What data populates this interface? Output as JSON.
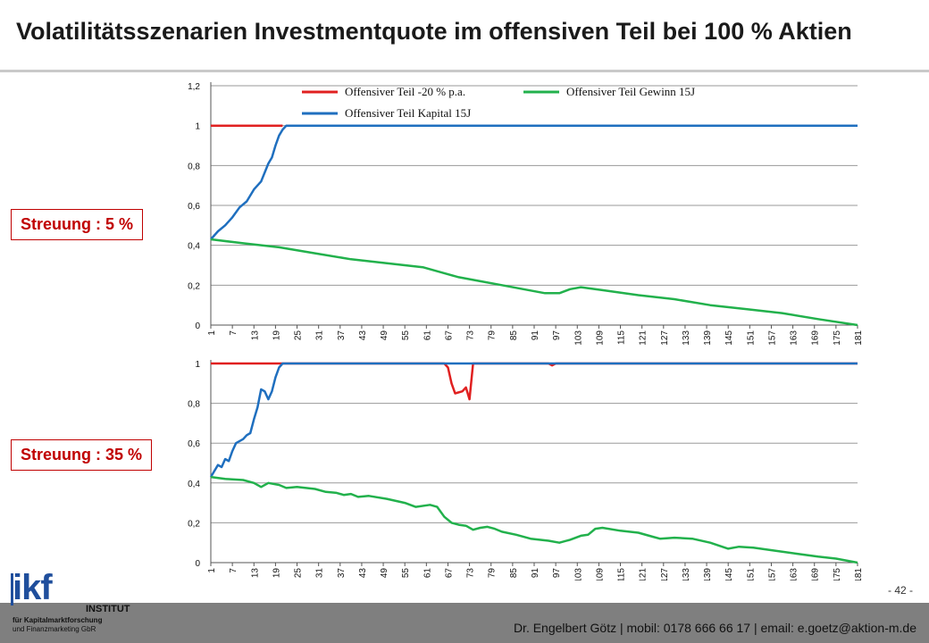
{
  "slide": {
    "title": "Volatilitätsszenarien Investmentquote im offensiven Teil bei 100 % Aktien",
    "page_number": "- 42 -",
    "footer": "Dr. Engelbert Götz  |  mobil: 0178 666 66 17  |  email: e.goetz@aktion-m.de",
    "logo": {
      "name": "ikf",
      "institute": "INSTITUT",
      "line1": "für Kapitalmarktforschung",
      "line2": "und Finanzmarketing GbR"
    },
    "boxes": [
      "Streuung : 5 %",
      "Streuung : 35 %"
    ]
  },
  "colors": {
    "red": "#e02020",
    "blue": "#1f6fbf",
    "green": "#22b14c",
    "accent": "#c00000"
  },
  "chart_data": [
    {
      "type": "line",
      "title": "",
      "xlabel": "",
      "ylabel": "",
      "ylim": [
        0,
        1.2
      ],
      "yticks": [
        "0",
        "0,2",
        "0,4",
        "0,6",
        "0,8",
        "1",
        "1,2"
      ],
      "xticks": [
        "1",
        "7",
        "13",
        "19",
        "25",
        "31",
        "37",
        "43",
        "49",
        "55",
        "61",
        "67",
        "73",
        "79",
        "85",
        "91",
        "97",
        "103",
        "109",
        "115",
        "121",
        "127",
        "133",
        "139",
        "145",
        "151",
        "157",
        "163",
        "169",
        "175",
        "181"
      ],
      "legend": [
        "Offensiver Teil -20 % p.a.",
        "Offensiver Teil Kapital 15J",
        "Offensiver Teil Gewinn 15J"
      ],
      "series": [
        {
          "name": "Offensiver Teil -20 % p.a.",
          "color": "red",
          "points": [
            [
              1,
              1
            ],
            [
              21,
              1
            ]
          ]
        },
        {
          "name": "Offensiver Teil Kapital 15J",
          "color": "blue",
          "points": [
            [
              1,
              0.43
            ],
            [
              3,
              0.47
            ],
            [
              5,
              0.5
            ],
            [
              7,
              0.54
            ],
            [
              9,
              0.59
            ],
            [
              11,
              0.62
            ],
            [
              13,
              0.68
            ],
            [
              15,
              0.72
            ],
            [
              17,
              0.81
            ],
            [
              18,
              0.84
            ],
            [
              19,
              0.9
            ],
            [
              20,
              0.95
            ],
            [
              21,
              0.98
            ],
            [
              22,
              1
            ],
            [
              181,
              1
            ]
          ]
        },
        {
          "name": "Offensiver Teil Gewinn 15J",
          "color": "green",
          "points": [
            [
              1,
              0.43
            ],
            [
              10,
              0.41
            ],
            [
              20,
              0.39
            ],
            [
              30,
              0.36
            ],
            [
              40,
              0.33
            ],
            [
              50,
              0.31
            ],
            [
              60,
              0.29
            ],
            [
              66,
              0.26
            ],
            [
              70,
              0.24
            ],
            [
              76,
              0.22
            ],
            [
              82,
              0.2
            ],
            [
              88,
              0.18
            ],
            [
              94,
              0.16
            ],
            [
              98,
              0.16
            ],
            [
              101,
              0.18
            ],
            [
              104,
              0.19
            ],
            [
              110,
              0.175
            ],
            [
              120,
              0.15
            ],
            [
              130,
              0.13
            ],
            [
              140,
              0.1
            ],
            [
              150,
              0.08
            ],
            [
              160,
              0.06
            ],
            [
              170,
              0.03
            ],
            [
              181,
              0
            ]
          ]
        }
      ]
    },
    {
      "type": "line",
      "title": "",
      "xlabel": "",
      "ylabel": "",
      "ylim": [
        0,
        1
      ],
      "yticks": [
        "0",
        "0,2",
        "0,4",
        "0,6",
        "0,8",
        "1"
      ],
      "xticks": [
        "1",
        "7",
        "13",
        "19",
        "25",
        "31",
        "37",
        "43",
        "49",
        "55",
        "61",
        "67",
        "73",
        "79",
        "85",
        "91",
        "97",
        "103",
        "109",
        "115",
        "121",
        "127",
        "133",
        "139",
        "145",
        "151",
        "157",
        "163",
        "169",
        "175",
        "181"
      ],
      "series": [
        {
          "name": "Offensiver Teil -20 % p.a.",
          "color": "red",
          "points": [
            [
              1,
              1
            ],
            [
              66,
              1
            ],
            [
              67,
              0.98
            ],
            [
              68,
              0.9
            ],
            [
              69,
              0.85
            ],
            [
              71,
              0.86
            ],
            [
              72,
              0.88
            ],
            [
              73,
              0.82
            ],
            [
              74,
              1
            ],
            [
              95,
              1
            ],
            [
              96,
              0.99
            ],
            [
              97,
              1
            ],
            [
              181,
              1
            ]
          ]
        },
        {
          "name": "Offensiver Teil Kapital 15J",
          "color": "blue",
          "points": [
            [
              1,
              0.43
            ],
            [
              2,
              0.46
            ],
            [
              3,
              0.49
            ],
            [
              4,
              0.48
            ],
            [
              5,
              0.52
            ],
            [
              6,
              0.51
            ],
            [
              7,
              0.56
            ],
            [
              8,
              0.6
            ],
            [
              10,
              0.62
            ],
            [
              11,
              0.64
            ],
            [
              12,
              0.65
            ],
            [
              13,
              0.72
            ],
            [
              14,
              0.78
            ],
            [
              15,
              0.87
            ],
            [
              16,
              0.86
            ],
            [
              17,
              0.82
            ],
            [
              18,
              0.86
            ],
            [
              19,
              0.93
            ],
            [
              20,
              0.98
            ],
            [
              21,
              1
            ],
            [
              181,
              1
            ]
          ]
        },
        {
          "name": "Offensiver Teil Gewinn 15J",
          "color": "green",
          "points": [
            [
              1,
              0.43
            ],
            [
              5,
              0.42
            ],
            [
              10,
              0.415
            ],
            [
              13,
              0.4
            ],
            [
              15,
              0.38
            ],
            [
              17,
              0.4
            ],
            [
              20,
              0.39
            ],
            [
              22,
              0.375
            ],
            [
              25,
              0.38
            ],
            [
              30,
              0.37
            ],
            [
              33,
              0.355
            ],
            [
              36,
              0.35
            ],
            [
              38,
              0.34
            ],
            [
              40,
              0.345
            ],
            [
              42,
              0.33
            ],
            [
              45,
              0.335
            ],
            [
              50,
              0.32
            ],
            [
              55,
              0.3
            ],
            [
              58,
              0.28
            ],
            [
              62,
              0.29
            ],
            [
              64,
              0.28
            ],
            [
              66,
              0.23
            ],
            [
              68,
              0.2
            ],
            [
              70,
              0.19
            ],
            [
              72,
              0.185
            ],
            [
              74,
              0.165
            ],
            [
              76,
              0.175
            ],
            [
              78,
              0.18
            ],
            [
              80,
              0.17
            ],
            [
              82,
              0.155
            ],
            [
              86,
              0.14
            ],
            [
              90,
              0.12
            ],
            [
              95,
              0.11
            ],
            [
              98,
              0.1
            ],
            [
              101,
              0.115
            ],
            [
              104,
              0.135
            ],
            [
              106,
              0.14
            ],
            [
              108,
              0.17
            ],
            [
              110,
              0.175
            ],
            [
              115,
              0.16
            ],
            [
              120,
              0.15
            ],
            [
              124,
              0.13
            ],
            [
              126,
              0.12
            ],
            [
              130,
              0.125
            ],
            [
              135,
              0.12
            ],
            [
              140,
              0.1
            ],
            [
              145,
              0.07
            ],
            [
              148,
              0.08
            ],
            [
              152,
              0.075
            ],
            [
              158,
              0.06
            ],
            [
              164,
              0.045
            ],
            [
              170,
              0.03
            ],
            [
              175,
              0.02
            ],
            [
              181,
              0
            ]
          ]
        }
      ]
    }
  ]
}
